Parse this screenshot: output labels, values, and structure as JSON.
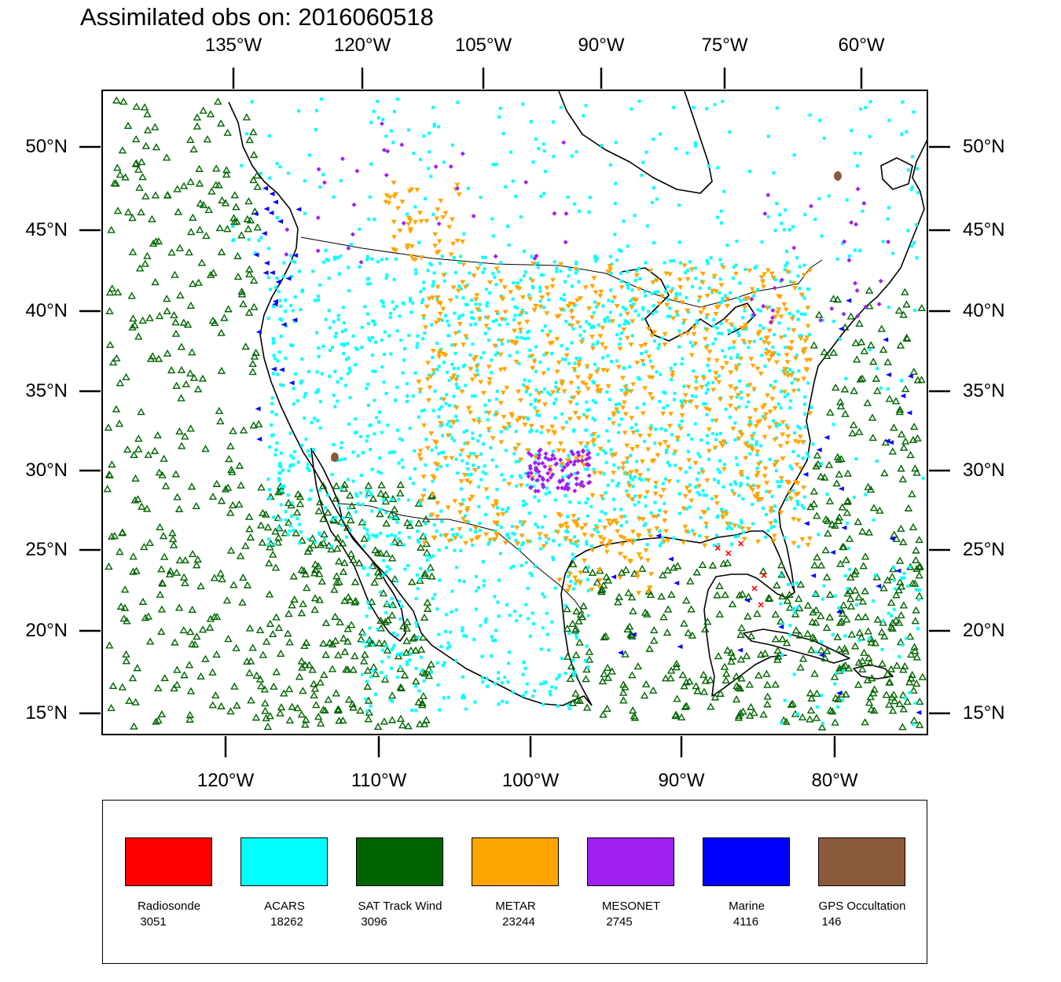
{
  "title": "Assimilated obs on: 2016060518",
  "top_axis": {
    "labels": [
      "135°W",
      "120°W",
      "105°W",
      "90°W",
      "75°W",
      "60°W"
    ]
  },
  "bottom_axis": {
    "labels": [
      "120°W",
      "110°W",
      "100°W",
      "90°W",
      "80°W"
    ]
  },
  "left_axis": {
    "labels": [
      "50°N",
      "45°N",
      "40°N",
      "35°N",
      "30°N",
      "25°N",
      "20°N",
      "15°N"
    ]
  },
  "right_axis": {
    "labels": [
      "50°N",
      "45°N",
      "40°N",
      "35°N",
      "30°N",
      "25°N",
      "20°N",
      "15°N"
    ]
  },
  "map": {
    "region": "Continental United States, southern Canada, Mexico, Gulf of Mexico and Caribbean",
    "lon_range": [
      -128,
      -74
    ],
    "lat_range": [
      13.5,
      53.5
    ],
    "land_color": "#ffffff",
    "coastline_color": "#000000"
  },
  "legend": {
    "items": [
      {
        "name": "Radiosonde",
        "count": "3051",
        "color": "#ff0000",
        "marker": "x-mark"
      },
      {
        "name": "ACARS",
        "count": "18262",
        "color": "#00ffff",
        "marker": "dot"
      },
      {
        "name": "SAT Track Wind",
        "count": "3096",
        "color": "#006400",
        "marker": "triangle-up-hollow"
      },
      {
        "name": "METAR",
        "count": "23244",
        "color": "#ffa500",
        "marker": "triangle-down"
      },
      {
        "name": "MESONET",
        "count": "2745",
        "color": "#a020f0",
        "marker": "diamond"
      },
      {
        "name": "Marine",
        "count": "4116",
        "color": "#0000ff",
        "marker": "triangle-left"
      },
      {
        "name": "GPS Occultation",
        "count": "146",
        "color": "#8b5a3c",
        "marker": "blob"
      }
    ]
  }
}
